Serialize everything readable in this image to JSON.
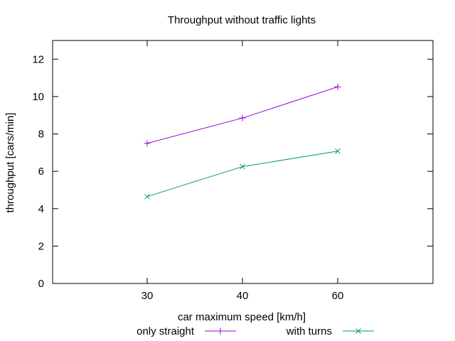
{
  "chart_data": {
    "type": "line",
    "title": "Throughput without traffic lights",
    "xlabel": "car maximum speed [km/h]",
    "ylabel": "throughput [cars/min]",
    "x_ticks": [
      "30",
      "40",
      "60"
    ],
    "ylim": [
      0,
      13
    ],
    "y_ticks": [
      0,
      2,
      4,
      6,
      8,
      10,
      12
    ],
    "grid": false,
    "legend_position": "bottom",
    "series": [
      {
        "name": "only straight",
        "x": [
          30,
          40,
          60
        ],
        "y": [
          7.5,
          8.85,
          10.52
        ],
        "color": "#9400d3",
        "marker": "plus"
      },
      {
        "name": "with turns",
        "x": [
          30,
          40,
          60
        ],
        "y": [
          4.65,
          6.25,
          7.08
        ],
        "color": "#009e73",
        "marker": "cross"
      }
    ]
  }
}
